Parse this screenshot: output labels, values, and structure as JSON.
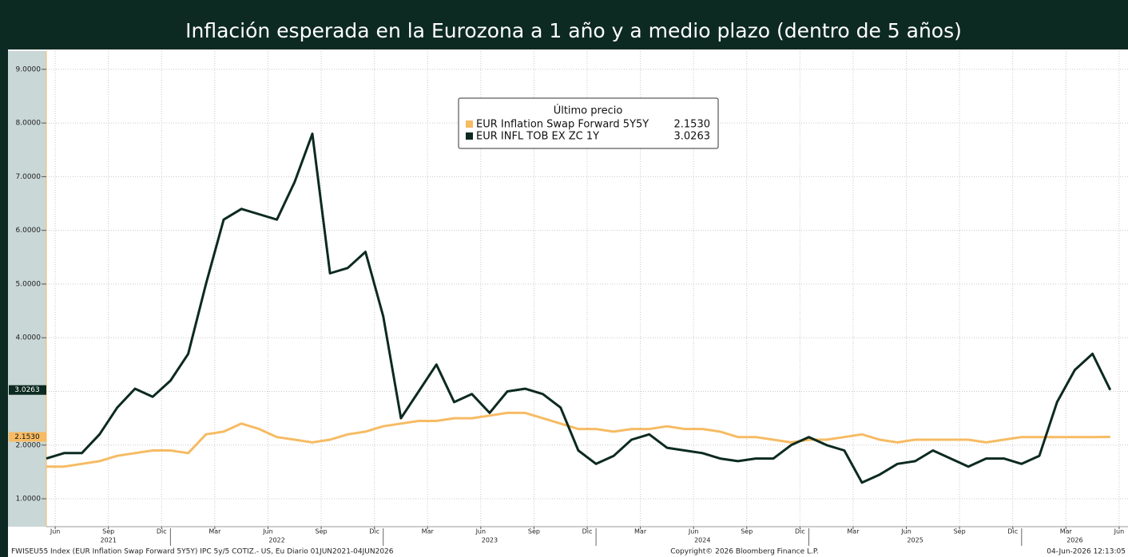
{
  "chart_data": {
    "type": "line",
    "title": "Inflación esperada en la Eurozona a 1 año y a medio plazo (dentro de 5 años)",
    "legend_title": "Último precio",
    "x": [
      "2021-06",
      "2021-07",
      "2021-08",
      "2021-09",
      "2021-10",
      "2021-11",
      "2021-12",
      "2022-01",
      "2022-02",
      "2022-03",
      "2022-04",
      "2022-05",
      "2022-06",
      "2022-07",
      "2022-08",
      "2022-09",
      "2022-10",
      "2022-11",
      "2022-12",
      "2023-01",
      "2023-02",
      "2023-03",
      "2023-04",
      "2023-05",
      "2023-06",
      "2023-07",
      "2023-08",
      "2023-09",
      "2023-10",
      "2023-11",
      "2023-12",
      "2024-01",
      "2024-02",
      "2024-03",
      "2024-04",
      "2024-05",
      "2024-06",
      "2024-07",
      "2024-08",
      "2024-09",
      "2024-10",
      "2024-11",
      "2024-12",
      "2025-01",
      "2025-02",
      "2025-03",
      "2025-04",
      "2025-05",
      "2025-06",
      "2025-07",
      "2025-08",
      "2025-09",
      "2025-10",
      "2025-11",
      "2025-12",
      "2026-01",
      "2026-02",
      "2026-03",
      "2026-04",
      "2026-05",
      "2026-06"
    ],
    "series": [
      {
        "name": "EUR Inflation Swap Forward 5Y5Y",
        "color": "#f6bb63",
        "last_label": "2.1530",
        "values": [
          1.6,
          1.6,
          1.65,
          1.7,
          1.8,
          1.85,
          1.9,
          1.9,
          1.85,
          2.2,
          2.25,
          2.4,
          2.3,
          2.15,
          2.1,
          2.05,
          2.1,
          2.2,
          2.25,
          2.35,
          2.4,
          2.45,
          2.45,
          2.5,
          2.5,
          2.55,
          2.6,
          2.6,
          2.5,
          2.4,
          2.3,
          2.3,
          2.25,
          2.3,
          2.3,
          2.35,
          2.3,
          2.3,
          2.25,
          2.15,
          2.15,
          2.1,
          2.05,
          2.1,
          2.1,
          2.15,
          2.2,
          2.1,
          2.05,
          2.1,
          2.1,
          2.1,
          2.1,
          2.05,
          2.1,
          2.15,
          2.15,
          2.15,
          2.15,
          2.15,
          2.153
        ]
      },
      {
        "name": "EUR INFL TOB EX ZC 1Y",
        "color": "#0c2a20",
        "last_label": "3.0263",
        "values": [
          1.75,
          1.85,
          1.85,
          2.2,
          2.7,
          3.05,
          2.9,
          3.2,
          3.7,
          5.0,
          6.2,
          6.4,
          6.3,
          6.2,
          6.9,
          7.8,
          5.2,
          5.3,
          5.6,
          4.4,
          2.5,
          3.0,
          3.5,
          2.8,
          2.95,
          2.6,
          3.0,
          3.05,
          2.95,
          2.7,
          1.9,
          1.65,
          1.8,
          2.1,
          2.2,
          1.95,
          1.9,
          1.85,
          1.75,
          1.7,
          1.75,
          1.75,
          2.0,
          2.15,
          2.0,
          1.9,
          1.3,
          1.45,
          1.65,
          1.7,
          1.9,
          1.75,
          1.6,
          1.75,
          1.75,
          1.65,
          1.8,
          2.8,
          3.4,
          3.7,
          3.0263
        ]
      }
    ],
    "xlim": [
      "2021-06",
      "2026-07"
    ],
    "xticks": [
      {
        "value": "2021-06",
        "label": "Jun"
      },
      {
        "value": "2021-09",
        "label": "Sep"
      },
      {
        "value": "2021-12",
        "label": "Dic"
      },
      {
        "value": "2022-03",
        "label": "Mar"
      },
      {
        "value": "2022-06",
        "label": "Jun"
      },
      {
        "value": "2022-09",
        "label": "Sep"
      },
      {
        "value": "2022-12",
        "label": "Dic"
      },
      {
        "value": "2023-03",
        "label": "Mar"
      },
      {
        "value": "2023-06",
        "label": "Jun"
      },
      {
        "value": "2023-09",
        "label": "Sep"
      },
      {
        "value": "2023-12",
        "label": "Dic"
      },
      {
        "value": "2024-03",
        "label": "Mar"
      },
      {
        "value": "2024-06",
        "label": "Jun"
      },
      {
        "value": "2024-09",
        "label": "Sep"
      },
      {
        "value": "2024-12",
        "label": "Dic"
      },
      {
        "value": "2025-03",
        "label": "Mar"
      },
      {
        "value": "2025-06",
        "label": "Jun"
      },
      {
        "value": "2025-09",
        "label": "Sep"
      },
      {
        "value": "2025-12",
        "label": "Dic"
      },
      {
        "value": "2026-03",
        "label": "Mar"
      },
      {
        "value": "2026-06",
        "label": "Jun"
      }
    ],
    "year_ticks": [
      2021,
      2022,
      2023,
      2024,
      2025,
      2026
    ],
    "ylim": [
      0.48,
      9.34
    ],
    "yticks": [
      {
        "value": 1,
        "label": "1.0000"
      },
      {
        "value": 2,
        "label": "2.0000"
      },
      {
        "value": 3,
        "label": "3.0000"
      },
      {
        "value": 4,
        "label": "4.0000"
      },
      {
        "value": 5,
        "label": "5.0000"
      },
      {
        "value": 6,
        "label": "6.0000"
      },
      {
        "value": 7,
        "label": "7.0000"
      },
      {
        "value": 8,
        "label": "8.0000"
      },
      {
        "value": 9,
        "label": "9.0000"
      }
    ],
    "grid": true,
    "footer_left": "FWISEU55 Index (EUR Inflation Swap Forward 5Y5Y) IPC 5y/5 COTIZ.- US, Eu Diario 01JUN2021-04JUN2026",
    "footer_center": "Copyright© 2026 Bloomberg Finance L.P.",
    "footer_right": "04-Jun-2026 12:13:05"
  }
}
